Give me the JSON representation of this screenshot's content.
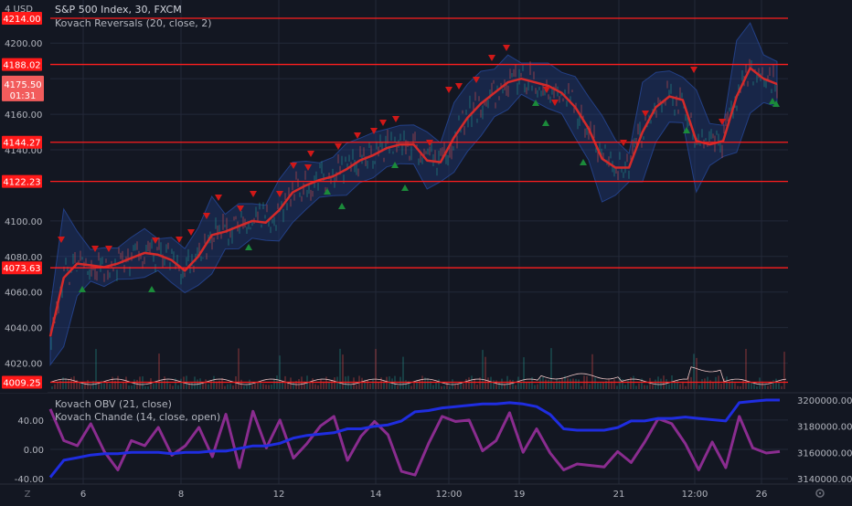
{
  "header": {
    "currency": "USD",
    "title": "S&P 500 Index, 30, FXCM",
    "indicator": "Kovach Reversals (20, close, 2)"
  },
  "colors": {
    "background": "#131722",
    "grid": "#232838",
    "candle_up": "#26a69a",
    "candle_down": "#ef5350",
    "red_line": "#ff1e1e",
    "ma_line": "#d42a2a",
    "band_fill": "#1e3a78",
    "obv_line": "#1f2de0",
    "chande_line": "#8a2c8f",
    "marker_down": "#d01818",
    "marker_up": "#1b8a3a"
  },
  "chart_data": [
    {
      "type": "line",
      "panel": "price",
      "title": "S&P 500 Index, 30, FXCM",
      "y_ticks": [
        4020,
        4040,
        4060,
        4080,
        4100,
        4140,
        4160,
        4180,
        4200
      ],
      "y_tick_labels": [
        "4020.00",
        "4040.00",
        "4060.00",
        "4080.00",
        "4100.00",
        "4140.00",
        "4160.00",
        "4180.00",
        "4200.00"
      ],
      "ylim": [
        4005,
        4222
      ],
      "x_labels": [
        "6",
        "8",
        "12",
        "14",
        "12:00",
        "19",
        "21",
        "12:00",
        "26"
      ],
      "horizontal_levels": [
        {
          "value": 4214.0,
          "label": "4214.00"
        },
        {
          "value": 4188.02,
          "label": "4188.02"
        },
        {
          "value": 4144.27,
          "label": "4144.27"
        },
        {
          "value": 4122.23,
          "label": "4122.23"
        },
        {
          "value": 4073.63,
          "label": "4073.63"
        },
        {
          "value": 4009.25,
          "label": "4009.25"
        }
      ],
      "last_price": {
        "value": 4175.5,
        "label": "4175.50",
        "countdown": "01:31"
      },
      "series": [
        {
          "name": "Kovach Reversals (20, close, 2)",
          "values": [
            4035,
            4068,
            4076,
            4075,
            4074,
            4076,
            4079,
            4082,
            4081,
            4078,
            4072,
            4080,
            4092,
            4094,
            4097,
            4100,
            4099,
            4106,
            4116,
            4120,
            4123,
            4125,
            4129,
            4134,
            4137,
            4141,
            4143,
            4143,
            4134,
            4133,
            4147,
            4158,
            4166,
            4172,
            4178,
            4180,
            4178,
            4176,
            4172,
            4164,
            4152,
            4135,
            4130,
            4130,
            4150,
            4164,
            4170,
            4168,
            4145,
            4143,
            4145,
            4170,
            4186,
            4180,
            4177
          ]
        }
      ]
    },
    {
      "type": "line",
      "panel": "indicators",
      "y_ticks_left": [
        40,
        0,
        -40
      ],
      "y_tick_labels_left": [
        "40.00",
        "0.00",
        "-40.00"
      ],
      "ylim_left": [
        -45,
        60
      ],
      "y_ticks_right": [
        3200000,
        3180000,
        3160000,
        3140000
      ],
      "y_tick_labels_right": [
        "3200000.00",
        "3180000.00",
        "3160000.00",
        "3140000.00"
      ],
      "ylim_right": [
        3137000,
        3205000
      ],
      "series": [
        {
          "name": "Kovach OBV (21, close)",
          "axis": "right",
          "values": [
            3141000,
            3154000,
            3156000,
            3158000,
            3159000,
            3159000,
            3160000,
            3160000,
            3160000,
            3159000,
            3160000,
            3160000,
            3161000,
            3161000,
            3163000,
            3165000,
            3165000,
            3167000,
            3171000,
            3173000,
            3174000,
            3175000,
            3178000,
            3178000,
            3180000,
            3181000,
            3184000,
            3191000,
            3192000,
            3194000,
            3195000,
            3196000,
            3197000,
            3197000,
            3198000,
            3197000,
            3195000,
            3189000,
            3178000,
            3177000,
            3177000,
            3177000,
            3179000,
            3184000,
            3184000,
            3186000,
            3186000,
            3187000,
            3186000,
            3185000,
            3184000,
            3198000,
            3199000,
            3200000,
            3200000
          ]
        },
        {
          "name": "Kovach Chande (14, close, open)",
          "axis": "left",
          "values": [
            55,
            12,
            5,
            35,
            -3,
            -28,
            12,
            5,
            30,
            -8,
            5,
            30,
            -10,
            48,
            -25,
            52,
            2,
            40,
            -12,
            8,
            32,
            45,
            -15,
            18,
            38,
            20,
            -30,
            -35,
            8,
            45,
            38,
            40,
            -2,
            12,
            50,
            -4,
            28,
            -5,
            -28,
            -20,
            -22,
            -24,
            -3,
            -18,
            10,
            42,
            35,
            8,
            -28,
            10,
            -25,
            45,
            2,
            -5,
            -3
          ]
        }
      ]
    }
  ]
}
